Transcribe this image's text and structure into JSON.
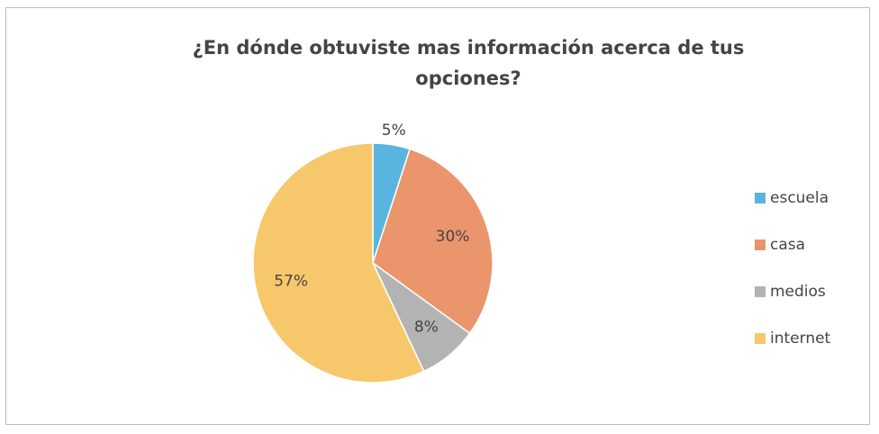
{
  "chart_data": {
    "type": "pie",
    "title": "¿En dónde obtuviste mas información acerca de tus opciones?",
    "categories": [
      "escuela",
      "casa",
      "medios",
      "internet"
    ],
    "values": [
      5,
      30,
      8,
      57
    ],
    "value_labels": [
      "5%",
      "30%",
      "8%",
      "57%"
    ],
    "colors": [
      "#5ab4e0",
      "#ea956b",
      "#b3b3b3",
      "#f6c86b"
    ],
    "legend": "right"
  }
}
